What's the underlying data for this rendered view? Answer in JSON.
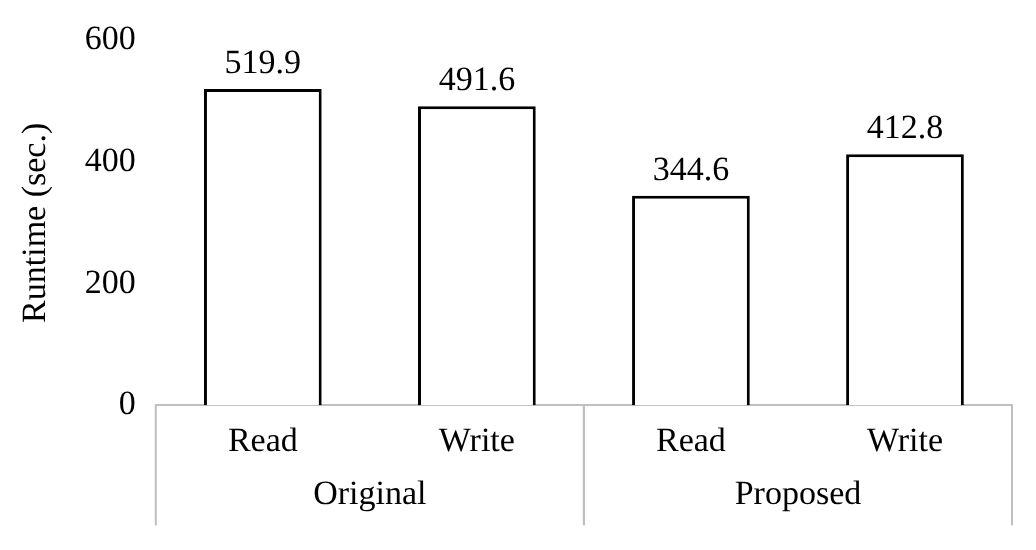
{
  "chart_data": {
    "type": "bar",
    "ylabel": "Runtime (sec.)",
    "categories": [
      "Read",
      "Write",
      "Read",
      "Write"
    ],
    "values": [
      519.9,
      491.6,
      344.6,
      412.8
    ],
    "colors": [
      "#ffffff",
      "#ffffff",
      "#ffffff",
      "#ffffff"
    ],
    "ylim": [
      0,
      600
    ],
    "yticks": [
      0,
      200,
      400,
      600
    ],
    "grid": false,
    "data_labels": true,
    "legend": false,
    "annotations": [
      "Original",
      "Proposed"
    ]
  }
}
